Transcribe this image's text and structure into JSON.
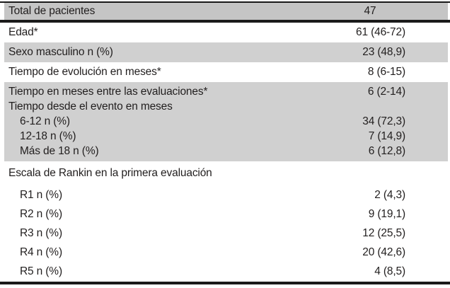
{
  "table": {
    "header": {
      "label": "Total de pacientes",
      "value": "47"
    },
    "rows": [
      {
        "label": "Edad*",
        "value": "61 (46-72)"
      },
      {
        "label": "Sexo masculino n (%)",
        "value": "23 (48,9)"
      },
      {
        "label": "Tiempo de evolución en meses*",
        "value": "8 (6-15)"
      }
    ],
    "shaded_group": {
      "lines": [
        {
          "label": "Tiempo en meses entre las evaluaciones*",
          "value": "6 (2-14)"
        },
        {
          "label": "Tiempo desde el evento en meses",
          "value": ""
        },
        {
          "label": "6-12 n (%)",
          "value": "34 (72,3)"
        },
        {
          "label": "12-18 n (%)",
          "value": "7 (14,9)"
        },
        {
          "label": "Más de 18 n (%)",
          "value": "6 (12,8)"
        }
      ]
    },
    "rankin_section": {
      "title": "Escala de Rankin en la primera evaluación",
      "rows": [
        {
          "label": "R1 n (%)",
          "value": "2 (4,3)"
        },
        {
          "label": "R2 n (%)",
          "value": "9 (19,1)"
        },
        {
          "label": "R3 n (%)",
          "value": "12 (25,5)"
        },
        {
          "label": "R4 n (%)",
          "value": "20 (42,6)"
        },
        {
          "label": "R5 n (%)",
          "value": "4 (8,5)"
        }
      ]
    },
    "colors": {
      "header_shade": "#c5c5c5",
      "row_shade": "#d0d0d0",
      "rule": "#1a1a1a",
      "text": "#211e1e"
    }
  }
}
